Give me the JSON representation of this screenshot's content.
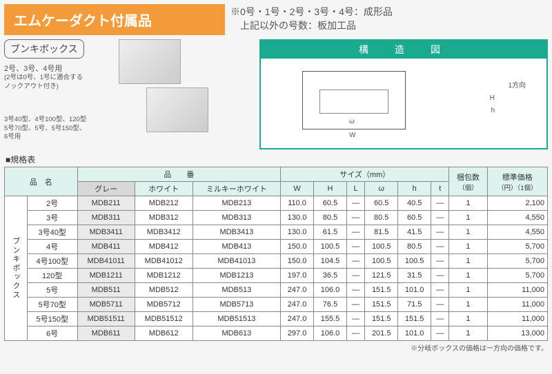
{
  "header": {
    "title": "エムケーダクト付属品",
    "note_line1": "※0号・1号・2号・3号・4号：成形品",
    "note_line2": "　上記以外の号数：板加工品"
  },
  "product": {
    "name": "ブンキボックス",
    "desc1a": "2号、3号、4号用",
    "desc1b": "(2号は0号、1号に適合するノックアウト付き)",
    "desc2": "3号40型、4号100型、120型 5号70型、5号、5号150型、6号用"
  },
  "diagram": {
    "title": "構　造　図",
    "labels": {
      "direction": "1方向",
      "H": "H",
      "h": "h",
      "omega": "ω",
      "W": "W"
    }
  },
  "spec": {
    "title": "■規格表",
    "headers": {
      "name": "品　名",
      "partno": "品　　番",
      "gray": "グレー",
      "white": "ホワイト",
      "milky": "ミルキーホワイト",
      "size": "サイズ（mm）",
      "W": "W",
      "H": "H",
      "L": "L",
      "omega": "ω",
      "h": "h",
      "t": "t",
      "pack": "梱包数",
      "pack_unit": "（個）",
      "price": "標準価格",
      "price_unit": "（円）（1個）"
    },
    "category": "ブンキボックス",
    "rows": [
      {
        "name": "2号",
        "g": "MDB211",
        "w": "MDB212",
        "m": "MDB213",
        "W": "110.0",
        "H": "60.5",
        "L": "—",
        "om": "60.5",
        "h": "40.5",
        "t": "—",
        "pk": "1",
        "pr": "2,100"
      },
      {
        "name": "3号",
        "g": "MDB311",
        "w": "MDB312",
        "m": "MDB313",
        "W": "130.0",
        "H": "80.5",
        "L": "—",
        "om": "80.5",
        "h": "60.5",
        "t": "—",
        "pk": "1",
        "pr": "4,550"
      },
      {
        "name": "3号40型",
        "g": "MDB3411",
        "w": "MDB3412",
        "m": "MDB3413",
        "W": "130.0",
        "H": "61.5",
        "L": "—",
        "om": "81.5",
        "h": "41.5",
        "t": "—",
        "pk": "1",
        "pr": "4,550"
      },
      {
        "name": "4号",
        "g": "MDB411",
        "w": "MDB412",
        "m": "MDB413",
        "W": "150.0",
        "H": "100.5",
        "L": "—",
        "om": "100.5",
        "h": "80.5",
        "t": "—",
        "pk": "1",
        "pr": "5,700"
      },
      {
        "name": "4号100型",
        "g": "MDB41011",
        "w": "MDB41012",
        "m": "MDB41013",
        "W": "150.0",
        "H": "104.5",
        "L": "—",
        "om": "100.5",
        "h": "100.5",
        "t": "—",
        "pk": "1",
        "pr": "5,700"
      },
      {
        "name": "120型",
        "g": "MDB1211",
        "w": "MDB1212",
        "m": "MDB1213",
        "W": "197.0",
        "H": "36.5",
        "L": "—",
        "om": "121.5",
        "h": "31.5",
        "t": "—",
        "pk": "1",
        "pr": "5,700"
      },
      {
        "name": "5号",
        "g": "MDB511",
        "w": "MDB512",
        "m": "MDB513",
        "W": "247.0",
        "H": "106.0",
        "L": "—",
        "om": "151.5",
        "h": "101.0",
        "t": "—",
        "pk": "1",
        "pr": "11,000"
      },
      {
        "name": "5号70型",
        "g": "MDB5711",
        "w": "MDB5712",
        "m": "MDB5713",
        "W": "247.0",
        "H": "76.5",
        "L": "—",
        "om": "151.5",
        "h": "71.5",
        "t": "—",
        "pk": "1",
        "pr": "11,000"
      },
      {
        "name": "5号150型",
        "g": "MDB51511",
        "w": "MDB51512",
        "m": "MDB51513",
        "W": "247.0",
        "H": "155.5",
        "L": "—",
        "om": "151.5",
        "h": "151.5",
        "t": "—",
        "pk": "1",
        "pr": "11,000"
      },
      {
        "name": "6号",
        "g": "MDB611",
        "w": "MDB612",
        "m": "MDB613",
        "W": "297.0",
        "H": "106.0",
        "L": "—",
        "om": "201.5",
        "h": "101.0",
        "t": "—",
        "pk": "1",
        "pr": "13,000"
      }
    ],
    "footnote": "※分岐ボックスの価格は一方向の価格です。"
  }
}
